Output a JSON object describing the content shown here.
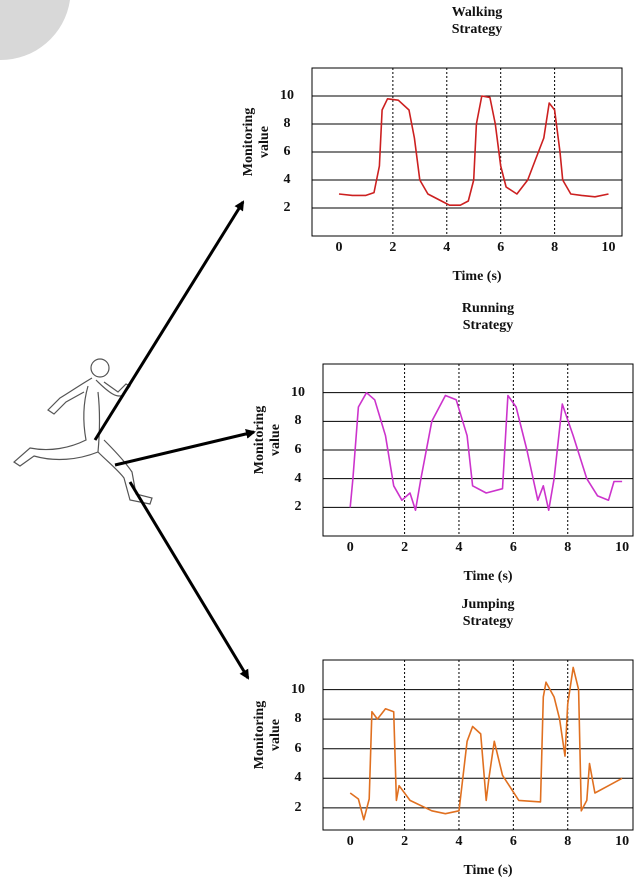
{
  "chart_data": [
    {
      "type": "line",
      "title": "Walking Strategy",
      "x_label": "Time (s)",
      "y_label": "Monitoring value",
      "color": "#cc2020",
      "x": [
        0,
        0.5,
        1.0,
        1.3,
        1.5,
        1.6,
        1.8,
        2.2,
        2.6,
        2.8,
        3.0,
        3.3,
        3.8,
        4.1,
        4.5,
        4.8,
        5.0,
        5.1,
        5.3,
        5.6,
        5.8,
        6.0,
        6.2,
        6.6,
        7.0,
        7.3,
        7.6,
        7.8,
        8.0,
        8.2,
        8.3,
        8.6,
        9.0,
        9.5,
        10
      ],
      "values": [
        3,
        2.9,
        2.9,
        3.1,
        5,
        9,
        9.8,
        9.7,
        9,
        7,
        4,
        3,
        2.5,
        2.2,
        2.2,
        2.5,
        4,
        8,
        10,
        9.9,
        8,
        5,
        3.5,
        3,
        4,
        5.5,
        7,
        9.5,
        9,
        6,
        4,
        3,
        2.9,
        2.8,
        3
      ],
      "xlim": [
        -1,
        10.5
      ],
      "ylim": [
        0,
        12
      ],
      "xticks": [
        0,
        2,
        4,
        6,
        8,
        10
      ],
      "yticks": [
        2,
        4,
        6,
        8,
        10
      ],
      "grid": true
    },
    {
      "type": "line",
      "title": "Running Strategy",
      "x_label": "Time (s)",
      "y_label": "Monitoring value",
      "color": "#cc33cc",
      "x": [
        0,
        0.1,
        0.3,
        0.6,
        0.9,
        1.3,
        1.6,
        1.9,
        2.2,
        2.4,
        2.6,
        3.0,
        3.5,
        3.9,
        4.3,
        4.5,
        5.0,
        5.6,
        5.8,
        6.1,
        6.5,
        6.9,
        7.1,
        7.3,
        7.5,
        7.8,
        8.2,
        8.7,
        9.1,
        9.5,
        9.7,
        10
      ],
      "values": [
        2,
        4,
        9,
        10,
        9.5,
        7,
        3.5,
        2.5,
        3,
        1.8,
        4,
        8,
        9.8,
        9.5,
        7,
        3.5,
        3,
        3.3,
        9.8,
        9,
        6,
        2.5,
        3.5,
        1.8,
        4,
        9.2,
        7,
        4,
        2.8,
        2.5,
        3.8,
        3.8
      ],
      "xlim": [
        -1,
        10.4
      ],
      "ylim": [
        0,
        12
      ],
      "xticks": [
        0,
        2,
        4,
        6,
        8,
        10
      ],
      "yticks": [
        2,
        4,
        6,
        8,
        10
      ],
      "grid": true
    },
    {
      "type": "line",
      "title": "Jumping Strategy",
      "x_label": "Time (s)",
      "y_label": "Monitoring value",
      "color": "#e07020",
      "x": [
        0,
        0.3,
        0.5,
        0.7,
        0.8,
        1.0,
        1.3,
        1.6,
        1.7,
        1.8,
        2.2,
        3.0,
        3.5,
        4.0,
        4.3,
        4.5,
        4.8,
        5.0,
        5.1,
        5.3,
        5.6,
        6.2,
        7.0,
        7.1,
        7.2,
        7.5,
        7.7,
        7.9,
        8.0,
        8.2,
        8.4,
        8.5,
        8.7,
        8.8,
        9.0,
        9.5,
        10
      ],
      "values": [
        3,
        2.6,
        1.2,
        2.6,
        8.5,
        8,
        8.7,
        8.5,
        2.5,
        3.5,
        2.5,
        1.8,
        1.6,
        1.8,
        6.5,
        7.5,
        7,
        2.5,
        4,
        6.5,
        4.2,
        2.5,
        2.4,
        9.5,
        10.5,
        9.5,
        8,
        5.5,
        9,
        11.5,
        10,
        1.8,
        2.5,
        5,
        3,
        3.5,
        4
      ],
      "xlim": [
        -1,
        10.4
      ],
      "ylim": [
        0.5,
        12
      ],
      "xticks": [
        0,
        2,
        4,
        6,
        8,
        10
      ],
      "yticks": [
        2,
        4,
        6,
        8,
        10
      ],
      "grid": true
    }
  ]
}
